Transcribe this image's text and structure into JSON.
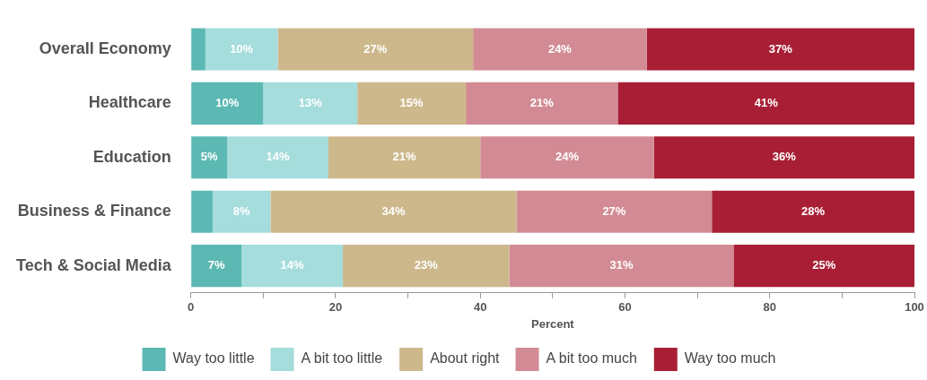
{
  "chart_data": {
    "type": "bar",
    "orientation": "horizontal",
    "stacked": true,
    "xlabel": "Percent",
    "categories": [
      "Overall Economy",
      "Healthcare",
      "Education",
      "Business & Finance",
      "Tech & Social Media"
    ],
    "xlim": [
      0,
      100
    ],
    "xticks": [
      0,
      {
        "value": 10,
        "label": null
      },
      20,
      {
        "value": 30,
        "label": null
      },
      40,
      {
        "value": 50,
        "label": null
      },
      60,
      {
        "value": 70,
        "label": null
      },
      80,
      {
        "value": 90,
        "label": null
      },
      100
    ],
    "series": [
      {
        "name": "Way too little",
        "color": "#5bb8b2",
        "values": [
          2,
          10,
          5,
          3,
          7
        ],
        "value_labels": [
          null,
          "10%",
          "5%",
          null,
          "7%"
        ]
      },
      {
        "name": "A bit too little",
        "color": "#a5dcdc",
        "values": [
          10,
          13,
          14,
          8,
          14
        ],
        "value_labels": [
          "10%",
          "13%",
          "14%",
          "8%",
          "14%"
        ]
      },
      {
        "name": "About right",
        "color": "#cdb88c",
        "values": [
          27,
          15,
          21,
          34,
          23
        ],
        "value_labels": [
          "27%",
          "15%",
          "21%",
          "34%",
          "23%"
        ]
      },
      {
        "name": "A bit too much",
        "color": "#d28b94",
        "values": [
          24,
          21,
          24,
          27,
          31
        ],
        "value_labels": [
          "24%",
          "21%",
          "24%",
          "27%",
          "31%"
        ]
      },
      {
        "name": "Way too much",
        "color": "#a81f35",
        "values": [
          37,
          41,
          36,
          28,
          25
        ],
        "value_labels": [
          "37%",
          "41%",
          "36%",
          "28%",
          "25%"
        ]
      }
    ],
    "grid": false,
    "legend": "bottom"
  }
}
